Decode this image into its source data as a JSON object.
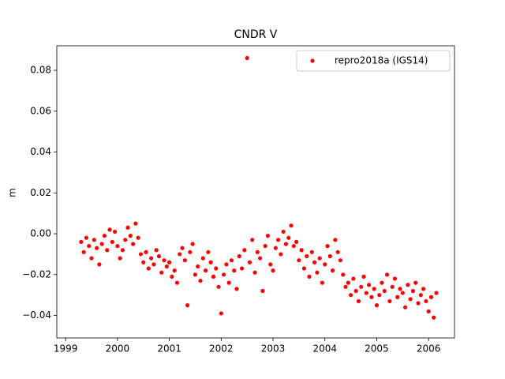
{
  "chart_data": {
    "type": "scatter",
    "title": "CNDR V",
    "ylabel": "m",
    "legend": "upper right",
    "xlim": [
      1998.83,
      2006.5
    ],
    "ylim": [
      -0.051,
      0.092
    ],
    "xticks": [
      1999,
      2000,
      2001,
      2002,
      2003,
      2004,
      2005,
      2006
    ],
    "yticks": [
      {
        "value": -0.04,
        "label": "−0.04"
      },
      {
        "value": -0.02,
        "label": "−0.02"
      },
      {
        "value": 0,
        "label": "0.00"
      },
      {
        "value": 0.02,
        "label": "0.02"
      },
      {
        "value": 0.04,
        "label": "0.04"
      },
      {
        "value": 0.06,
        "label": "0.06"
      },
      {
        "value": 0.08,
        "label": "0.08"
      }
    ],
    "series": [
      {
        "name": "repro2018a (IGS14)",
        "color": "#ff0000",
        "x": [
          1999.3,
          1999.35,
          1999.4,
          1999.45,
          1999.5,
          1999.55,
          1999.6,
          1999.65,
          1999.7,
          1999.75,
          1999.8,
          1999.85,
          1999.9,
          1999.95,
          2000.0,
          2000.05,
          2000.1,
          2000.15,
          2000.2,
          2000.25,
          2000.3,
          2000.35,
          2000.4,
          2000.45,
          2000.5,
          2000.55,
          2000.6,
          2000.65,
          2000.7,
          2000.75,
          2000.8,
          2000.85,
          2000.9,
          2000.95,
          2001.0,
          2001.05,
          2001.1,
          2001.15,
          2001.2,
          2001.25,
          2001.3,
          2001.35,
          2001.4,
          2001.45,
          2001.5,
          2001.55,
          2001.6,
          2001.65,
          2001.7,
          2001.75,
          2001.8,
          2001.85,
          2001.9,
          2001.95,
          2002.0,
          2002.05,
          2002.1,
          2002.15,
          2002.2,
          2002.25,
          2002.3,
          2002.35,
          2002.4,
          2002.45,
          2002.5,
          2002.55,
          2002.6,
          2002.65,
          2002.7,
          2002.75,
          2002.8,
          2002.85,
          2002.9,
          2002.95,
          2003.0,
          2003.05,
          2003.1,
          2003.15,
          2003.2,
          2003.25,
          2003.3,
          2003.35,
          2003.4,
          2003.45,
          2003.5,
          2003.55,
          2003.6,
          2003.65,
          2003.7,
          2003.75,
          2003.8,
          2003.85,
          2003.9,
          2003.95,
          2004.0,
          2004.05,
          2004.1,
          2004.15,
          2004.2,
          2004.25,
          2004.3,
          2004.35,
          2004.4,
          2004.45,
          2004.5,
          2004.55,
          2004.6,
          2004.65,
          2004.7,
          2004.75,
          2004.8,
          2004.85,
          2004.9,
          2004.95,
          2005.0,
          2005.05,
          2005.1,
          2005.15,
          2005.2,
          2005.25,
          2005.3,
          2005.35,
          2005.4,
          2005.45,
          2005.5,
          2005.55,
          2005.6,
          2005.65,
          2005.7,
          2005.75,
          2005.8,
          2005.85,
          2005.9,
          2005.95,
          2006.0,
          2006.05,
          2006.1,
          2006.15
        ],
        "values": [
          -0.004,
          -0.009,
          -0.002,
          -0.006,
          -0.012,
          -0.003,
          -0.007,
          -0.015,
          -0.005,
          -0.001,
          -0.008,
          0.002,
          -0.004,
          0.001,
          -0.006,
          -0.012,
          -0.008,
          -0.003,
          0.003,
          -0.001,
          -0.005,
          0.005,
          -0.002,
          -0.01,
          -0.014,
          -0.009,
          -0.017,
          -0.012,
          -0.015,
          -0.008,
          -0.011,
          -0.019,
          -0.013,
          -0.016,
          -0.014,
          -0.021,
          -0.018,
          -0.024,
          -0.01,
          -0.007,
          -0.013,
          -0.035,
          -0.009,
          -0.005,
          -0.02,
          -0.016,
          -0.023,
          -0.012,
          -0.018,
          -0.009,
          -0.014,
          -0.021,
          -0.017,
          -0.026,
          -0.039,
          -0.02,
          -0.015,
          -0.024,
          -0.013,
          -0.018,
          -0.027,
          -0.011,
          -0.017,
          -0.008,
          0.086,
          -0.014,
          -0.003,
          -0.019,
          -0.009,
          -0.012,
          -0.028,
          -0.006,
          -0.001,
          -0.015,
          -0.018,
          -0.007,
          -0.003,
          -0.01,
          0.001,
          -0.005,
          -0.002,
          0.004,
          -0.006,
          -0.004,
          -0.013,
          -0.008,
          -0.017,
          -0.011,
          -0.021,
          -0.009,
          -0.014,
          -0.019,
          -0.012,
          -0.024,
          -0.015,
          -0.006,
          -0.011,
          -0.018,
          -0.003,
          -0.009,
          -0.013,
          -0.02,
          -0.026,
          -0.024,
          -0.03,
          -0.022,
          -0.028,
          -0.033,
          -0.026,
          -0.021,
          -0.029,
          -0.025,
          -0.031,
          -0.027,
          -0.035,
          -0.03,
          -0.024,
          -0.028,
          -0.02,
          -0.033,
          -0.026,
          -0.022,
          -0.031,
          -0.027,
          -0.029,
          -0.036,
          -0.025,
          -0.032,
          -0.028,
          -0.024,
          -0.034,
          -0.03,
          -0.027,
          -0.033,
          -0.038,
          -0.031,
          -0.041,
          -0.029
        ]
      }
    ]
  }
}
